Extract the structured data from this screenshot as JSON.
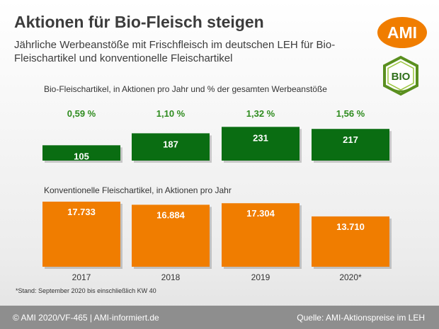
{
  "header": {
    "title": "Aktionen für Bio-Fleisch steigen",
    "subtitle": "Jährliche Werbeanstöße mit Frischfleisch im deutschen LEH für Bio-Fleischartikel und konventionelle Fleischartikel"
  },
  "logo": {
    "ami_text": "AMI",
    "bio_text": "BIO",
    "bio_icon": "bio-hexagon-seal"
  },
  "chart_data": {
    "type": "bar",
    "categories": [
      "2017",
      "2018",
      "2019",
      "2020*"
    ],
    "series": [
      {
        "name": "Bio-Fleischartikel, in Aktionen pro Jahr und % der gesamten Werbeanstöße",
        "values": [
          105,
          187,
          231,
          217
        ],
        "value_labels": [
          "105",
          "187",
          "231",
          "217"
        ],
        "percent_labels": [
          "0,59 %",
          "1,10 %",
          "1,32 %",
          "1,56 %"
        ],
        "color": "#0a6d12"
      },
      {
        "name": "Konventionelle Fleischartikel, in Aktionen pro Jahr",
        "values": [
          17733,
          16884,
          17304,
          13710
        ],
        "value_labels": [
          "17.733",
          "16.884",
          "17.304",
          "13.710"
        ],
        "color": "#f07d00"
      }
    ]
  },
  "note": "*Stand: September 2020 bis einschließlich KW 40",
  "footer": {
    "left": "© AMI 2020/VF-465 | AMI-informiert.de",
    "right": "Quelle: AMI-Aktionspreise im LEH"
  },
  "colors": {
    "orange": "#f07d00",
    "green": "#0a6d12",
    "percent_green": "#2e8b1e",
    "footer_bg": "#8e8e8e"
  }
}
